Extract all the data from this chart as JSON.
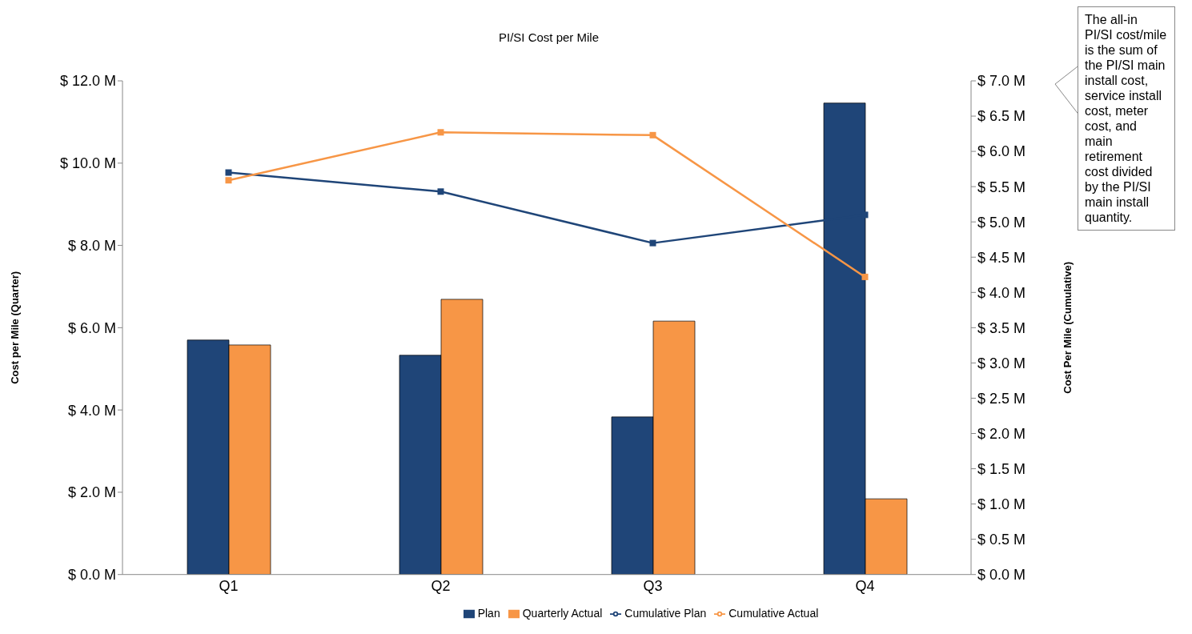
{
  "chart_data": {
    "type": "bar",
    "title": "PI/SI Cost per Mile",
    "ylabel": "Cost per Mile (Quarter)",
    "y2label": "Cost Per Mile (Cumulative)",
    "categories": [
      "Q1",
      "Q2",
      "Q3",
      "Q4"
    ],
    "series": [
      {
        "name": "Plan",
        "color": "#1f4578",
        "values": [
          5.7,
          5.33,
          3.83,
          11.46
        ]
      },
      {
        "name": "Quarterly Actual",
        "color": "#f79646",
        "values": [
          5.58,
          6.69,
          6.16,
          1.84
        ]
      },
      {
        "name": "Cumulative Plan",
        "type": "line",
        "axis": "y2",
        "color": "#1f4578",
        "values": [
          5.7,
          5.43,
          4.7,
          5.1
        ]
      },
      {
        "name": "Cumulative Actual",
        "type": "line",
        "axis": "y2",
        "color": "#f79646",
        "values": [
          5.59,
          6.27,
          6.23,
          4.22
        ]
      }
    ],
    "ylim": [
      0,
      12
    ],
    "yticks": [
      {
        "value": 0,
        "label": "$ 0.0 M"
      },
      {
        "value": 2,
        "label": "$ 2.0 M"
      },
      {
        "value": 4,
        "label": "$ 4.0 M"
      },
      {
        "value": 6,
        "label": "$ 6.0 M"
      },
      {
        "value": 8,
        "label": "$ 8.0 M"
      },
      {
        "value": 10,
        "label": "$ 10.0 M"
      },
      {
        "value": 12,
        "label": "$ 12.0 M"
      }
    ],
    "y2lim": [
      0,
      7
    ],
    "y2ticks": [
      {
        "value": 0,
        "label": "$ 0.0 M"
      },
      {
        "value": 0.5,
        "label": "$ 0.5 M"
      },
      {
        "value": 1,
        "label": "$ 1.0 M"
      },
      {
        "value": 1.5,
        "label": "$ 1.5 M"
      },
      {
        "value": 2,
        "label": "$ 2.0 M"
      },
      {
        "value": 2.5,
        "label": "$ 2.5 M"
      },
      {
        "value": 3,
        "label": "$ 3.0 M"
      },
      {
        "value": 3.5,
        "label": "$ 3.5 M"
      },
      {
        "value": 4,
        "label": "$ 4.0 M"
      },
      {
        "value": 4.5,
        "label": "$ 4.5 M"
      },
      {
        "value": 5,
        "label": "$ 5.0 M"
      },
      {
        "value": 5.5,
        "label": "$ 5.5 M"
      },
      {
        "value": 6,
        "label": "$ 6.0 M"
      },
      {
        "value": 6.5,
        "label": "$ 6.5 M"
      },
      {
        "value": 7,
        "label": "$ 7.0 M"
      }
    ],
    "annotations": [
      "The all-in PI/SI cost/mile is the sum of the PI/SI main install cost, service install cost, meter cost, and main retirement cost divided by the PI/SI main install quantity."
    ],
    "legend": "bottom",
    "marker": "square",
    "grid": false
  }
}
